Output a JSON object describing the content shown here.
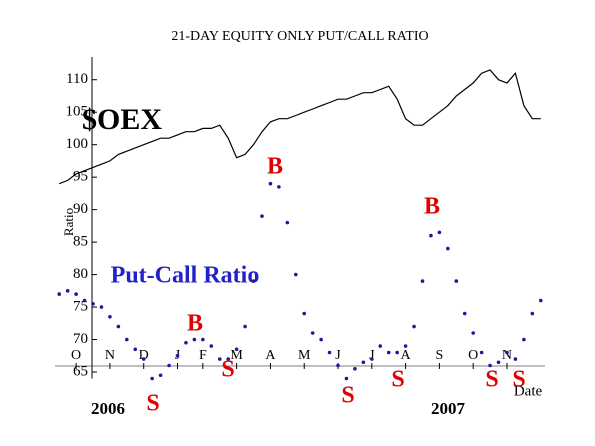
{
  "chart_data": {
    "type": "line",
    "title": "21-DAY EQUITY ONLY PUT/CALL RATIO",
    "y_label": "Ratio",
    "x_label": "Date",
    "categories": [
      null,
      null,
      "O",
      null,
      null,
      null,
      "N",
      null,
      null,
      null,
      "D",
      null,
      null,
      null,
      "J",
      null,
      null,
      "F",
      null,
      null,
      null,
      "M",
      null,
      null,
      null,
      "A",
      null,
      null,
      null,
      "M",
      null,
      null,
      null,
      "J",
      null,
      null,
      null,
      "J",
      null,
      null,
      null,
      "A",
      null,
      null,
      null,
      "S",
      null,
      null,
      null,
      "O",
      null,
      null,
      null,
      "N",
      null,
      null,
      null,
      null
    ],
    "year_labels": [
      "2006",
      "2007"
    ],
    "series": [
      {
        "name": "$OEX",
        "color": "#000000",
        "style": "line",
        "values": [
          94,
          94.5,
          95.5,
          96,
          96.5,
          97,
          97.5,
          98.5,
          99,
          99.5,
          100,
          100.5,
          101,
          101,
          101.5,
          102,
          102,
          102.5,
          102.5,
          103,
          101,
          98,
          98.5,
          100,
          102,
          103.5,
          104,
          104,
          104.5,
          105,
          105.5,
          106,
          106.5,
          107,
          107,
          107.5,
          108,
          108,
          108.5,
          109,
          107,
          104,
          103,
          103,
          104,
          105,
          106,
          107.5,
          108.5,
          109.5,
          111,
          111.5,
          110,
          109.5,
          111,
          106,
          104,
          104
        ]
      },
      {
        "name": "Put-Call Ratio",
        "color": "#1a1aa0",
        "style": "dots",
        "values": [
          77,
          77.5,
          77,
          76,
          75.5,
          75,
          73.5,
          72,
          70,
          68.5,
          67,
          64,
          64.5,
          66,
          67.5,
          69.5,
          70,
          70,
          69,
          67,
          67,
          68.5,
          72,
          79,
          89,
          94,
          93.5,
          88,
          80,
          74,
          71,
          70,
          68,
          66,
          64,
          65.5,
          66.5,
          67,
          69,
          68,
          68,
          69,
          72,
          79,
          86,
          86.5,
          84,
          79,
          74,
          71,
          68,
          66,
          66.5,
          68,
          67,
          70,
          74,
          76
        ]
      }
    ],
    "annotations": [
      "B",
      "B",
      "B",
      "S",
      "S",
      "S",
      "S",
      "S",
      "S"
    ],
    "annotation_color": "#e00000",
    "ylim": [
      64,
      113.5
    ],
    "yticks": [
      65,
      70,
      75,
      80,
      85,
      90,
      95,
      100,
      105,
      110
    ]
  }
}
